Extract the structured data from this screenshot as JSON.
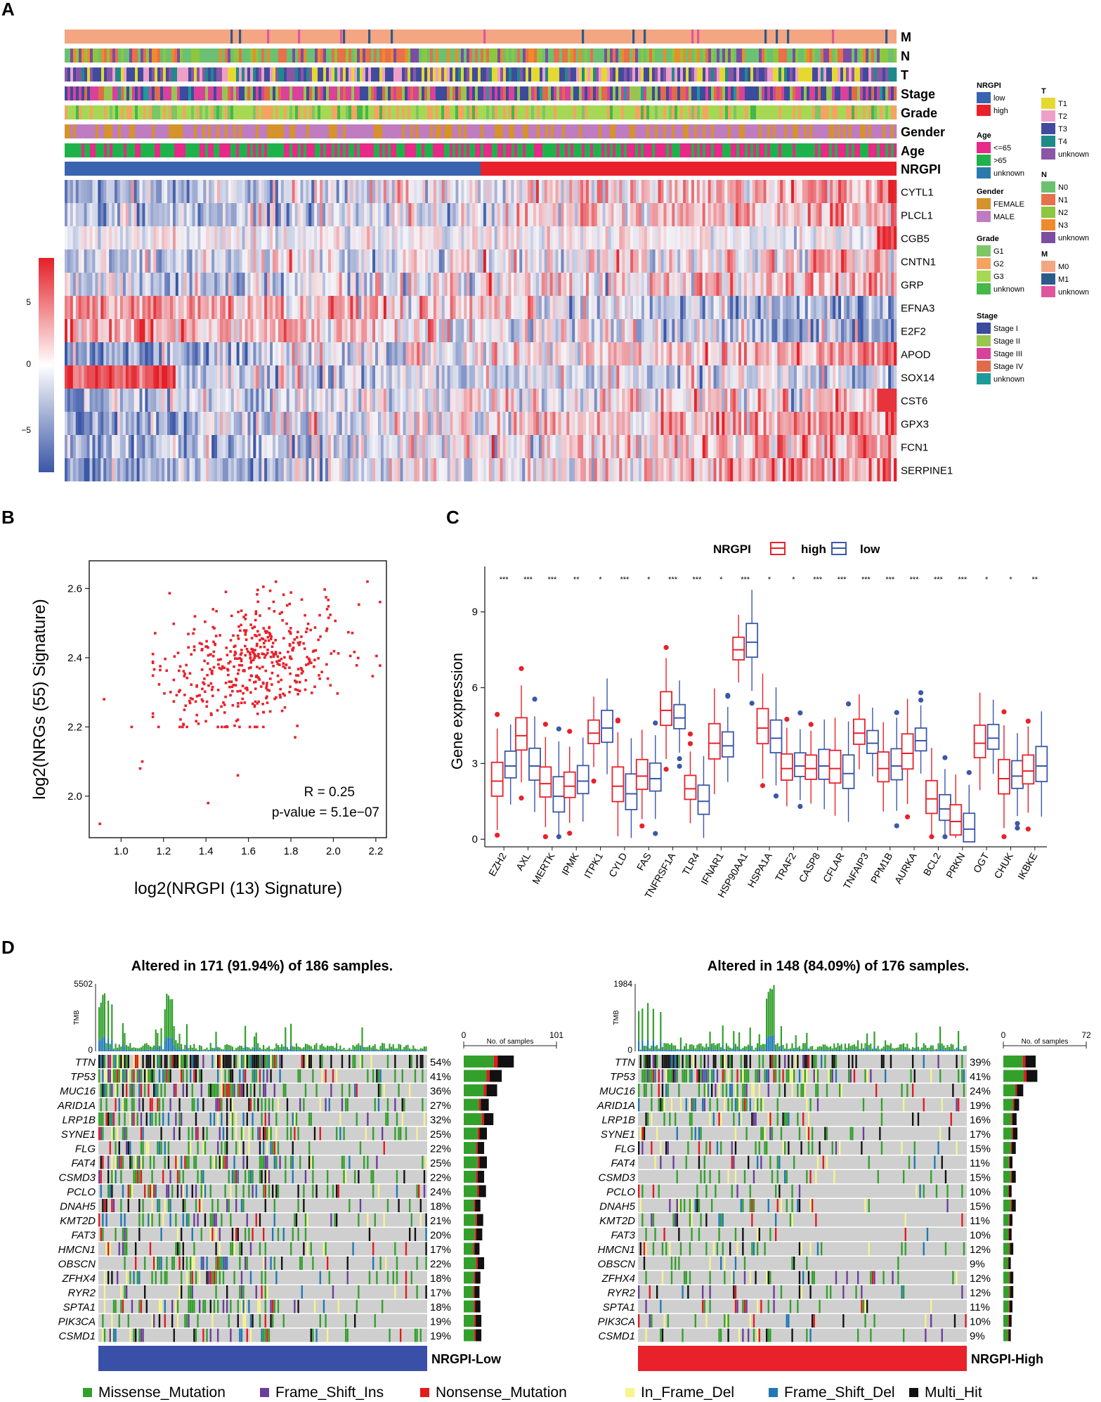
{
  "panels": {
    "A": "A",
    "B": "B",
    "C": "C",
    "D": "D"
  },
  "colors": {
    "low": "#3a58a8",
    "high": "#e8212a",
    "heat_low": "#3a56a6",
    "heat_mid": "#f4f4f8",
    "heat_high": "#e41f27",
    "missense": "#33a02c",
    "frameins": "#6a3d9a",
    "nonsense": "#e31a1c",
    "inframe": "#f7f58c",
    "framedel": "#1f78b4",
    "multihit": "#111111",
    "grey": "#cfcfcf"
  },
  "panel_a": {
    "annotation_tracks": [
      "M",
      "N",
      "T",
      "Stage",
      "Grade",
      "Gender",
      "Age",
      "NRGPI"
    ],
    "genes": [
      "CYTL1",
      "PLCL1",
      "CGB5",
      "CNTN1",
      "GRP",
      "EFNA3",
      "E2F2",
      "APOD",
      "SOX14",
      "CST6",
      "GPX3",
      "FCN1",
      "SERPINE1"
    ],
    "colorbar_ticks": [
      "5",
      "0",
      "−5"
    ],
    "legend": [
      {
        "title": "NRGPI",
        "items": [
          {
            "label": "low",
            "color": "#3a64b0"
          },
          {
            "label": "high",
            "color": "#e8212a"
          }
        ]
      },
      {
        "title": "Age",
        "items": [
          {
            "label": "<=65",
            "color": "#e7298a"
          },
          {
            "label": ">65",
            "color": "#1fb24a"
          },
          {
            "label": "unknown",
            "color": "#2a7ab0"
          }
        ]
      },
      {
        "title": "Gender",
        "items": [
          {
            "label": "FEMALE",
            "color": "#d4932b"
          },
          {
            "label": "MALE",
            "color": "#c07cc0"
          }
        ]
      },
      {
        "title": "Grade",
        "items": [
          {
            "label": "G1",
            "color": "#7cc665"
          },
          {
            "label": "G2",
            "color": "#f4a460"
          },
          {
            "label": "G3",
            "color": "#a6d854"
          },
          {
            "label": "unknown",
            "color": "#44b848"
          }
        ]
      },
      {
        "title": "Stage",
        "items": [
          {
            "label": "Stage I",
            "color": "#3c4b9c"
          },
          {
            "label": "Stage II",
            "color": "#98c54f"
          },
          {
            "label": "Stage III",
            "color": "#d8429a"
          },
          {
            "label": "Stage IV",
            "color": "#e06b4a"
          },
          {
            "label": "unknown",
            "color": "#1e9a9a"
          }
        ]
      },
      {
        "title": "T",
        "items": [
          {
            "label": "T1",
            "color": "#e5d931"
          },
          {
            "label": "T2",
            "color": "#ee9fc9"
          },
          {
            "label": "T3",
            "color": "#414b9e"
          },
          {
            "label": "T4",
            "color": "#1f8a8a"
          },
          {
            "label": "unknown",
            "color": "#8b56a6"
          }
        ]
      },
      {
        "title": "N",
        "items": [
          {
            "label": "N0",
            "color": "#6cc071"
          },
          {
            "label": "N1",
            "color": "#e8704a"
          },
          {
            "label": "N2",
            "color": "#8dc63f"
          },
          {
            "label": "N3",
            "color": "#f08a2a"
          },
          {
            "label": "unknown",
            "color": "#7b4ea0"
          }
        ]
      },
      {
        "title": "M",
        "items": [
          {
            "label": "M0",
            "color": "#f4a582"
          },
          {
            "label": "M1",
            "color": "#2c5b8a"
          },
          {
            "label": "unknown",
            "color": "#e0569e"
          }
        ]
      }
    ]
  },
  "chart_data": [
    {
      "type": "scatter",
      "panel": "B",
      "xlabel": "log2(NRGPI (13) Signature)",
      "ylabel": "log2(NRGs (55) Signature)",
      "xlim": [
        0.85,
        2.25
      ],
      "ylim": [
        1.88,
        2.68
      ],
      "xticks": [
        "1.0",
        "1.2",
        "1.4",
        "1.6",
        "1.8",
        "2.0",
        "2.2"
      ],
      "yticks": [
        "2.0",
        "2.2",
        "2.4",
        "2.6"
      ],
      "annotation": [
        "R = 0.25",
        "p-value = 5.1e−07"
      ],
      "n_points": 480,
      "outliers": [
        [
          0.9,
          1.92
        ],
        [
          0.92,
          2.28
        ],
        [
          1.05,
          2.2
        ],
        [
          1.1,
          2.1
        ],
        [
          1.09,
          2.08
        ],
        [
          1.41,
          1.98
        ],
        [
          1.55,
          2.06
        ],
        [
          1.82,
          2.17
        ]
      ]
    },
    {
      "type": "box",
      "panel": "C",
      "legend_title": "NRGPI",
      "legend": [
        "high",
        "low"
      ],
      "ylabel": "Gene expression",
      "ylim": [
        -0.3,
        10.8
      ],
      "yticks": [
        "0",
        "3",
        "6",
        "9"
      ],
      "categories": [
        "EZH2",
        "AXL",
        "MERTK",
        "IPMK",
        "ITPK1",
        "CYLD",
        "FAS",
        "TNFRSF1A",
        "TLR4",
        "IFNAR1",
        "HSP90AA1",
        "HSPA1A",
        "TRAF2",
        "CASP8",
        "CFLAR",
        "TNFAIP3",
        "PPM1B",
        "AURKA",
        "BCL2",
        "PRKN",
        "OGT",
        "CHUK",
        "IKBKE"
      ],
      "significance": [
        "***",
        "***",
        "***",
        "**",
        "*",
        "***",
        "*",
        "***",
        "***",
        "*",
        "***",
        "*",
        "*",
        "***",
        "***",
        "***",
        "***",
        "***",
        "***",
        "***",
        "*",
        "*",
        "**"
      ],
      "series": [
        {
          "name": "high",
          "median": [
            2.3,
            4.1,
            2.2,
            2.1,
            4.2,
            2.1,
            2.5,
            5.1,
            2.0,
            3.8,
            7.5,
            4.4,
            2.8,
            2.8,
            2.8,
            4.2,
            2.8,
            3.4,
            1.6,
            0.7,
            3.8,
            2.4,
            2.7
          ]
        },
        {
          "name": "low",
          "median": [
            2.9,
            2.9,
            1.7,
            2.3,
            4.4,
            1.8,
            2.4,
            4.8,
            1.5,
            3.7,
            7.8,
            4.0,
            2.9,
            2.9,
            2.6,
            3.8,
            2.9,
            3.9,
            1.2,
            0.4,
            4.0,
            2.5,
            2.9
          ]
        }
      ]
    },
    {
      "type": "oncoplot",
      "panel": "D",
      "left": {
        "title": "Altered in 171 (91.94%) of 186 samples.",
        "tmb_label": "TMB",
        "tmb_max": "5502",
        "tmb_min": "0",
        "bar_axis": [
          "0",
          "101"
        ],
        "bar_title": "No. of samples",
        "group_label": "NRGPI-Low",
        "genes": [
          "TTN",
          "TP53",
          "MUC16",
          "ARID1A",
          "LRP1B",
          "SYNE1",
          "FLG",
          "FAT4",
          "CSMD3",
          "PCLO",
          "DNAH5",
          "KMT2D",
          "FAT3",
          "HMCN1",
          "OBSCN",
          "ZFHX4",
          "RYR2",
          "SPTA1",
          "PIK3CA",
          "CSMD1"
        ],
        "percents": [
          "54%",
          "41%",
          "36%",
          "27%",
          "32%",
          "25%",
          "22%",
          "25%",
          "22%",
          "24%",
          "18%",
          "21%",
          "20%",
          "17%",
          "22%",
          "18%",
          "17%",
          "18%",
          "19%",
          "19%"
        ]
      },
      "right": {
        "title": "Altered in 148 (84.09%) of 176 samples.",
        "tmb_label": "TMB",
        "tmb_max": "1984",
        "tmb_min": "0",
        "bar_axis": [
          "0",
          "72"
        ],
        "bar_title": "No. of samples",
        "group_label": "NRGPI-High",
        "genes": [
          "TTN",
          "TP53",
          "MUC16",
          "ARID1A",
          "LRP1B",
          "SYNE1",
          "FLG",
          "FAT4",
          "CSMD3",
          "PCLO",
          "DNAH5",
          "KMT2D",
          "FAT3",
          "HMCN1",
          "OBSCN",
          "ZFHX4",
          "RYR2",
          "SPTA1",
          "PIK3CA",
          "CSMD1"
        ],
        "percents": [
          "39%",
          "41%",
          "24%",
          "19%",
          "16%",
          "17%",
          "15%",
          "11%",
          "15%",
          "10%",
          "15%",
          "11%",
          "10%",
          "12%",
          "9%",
          "12%",
          "12%",
          "11%",
          "10%",
          "9%"
        ]
      },
      "legend": [
        {
          "label": "Missense_Mutation",
          "color": "#33a02c"
        },
        {
          "label": "Frame_Shift_Ins",
          "color": "#6a3d9a"
        },
        {
          "label": "Nonsense_Mutation",
          "color": "#e31a1c"
        },
        {
          "label": "In_Frame_Del",
          "color": "#f7f58c"
        },
        {
          "label": "Frame_Shift_Del",
          "color": "#1f78b4"
        },
        {
          "label": "Multi_Hit",
          "color": "#111111"
        }
      ]
    }
  ]
}
